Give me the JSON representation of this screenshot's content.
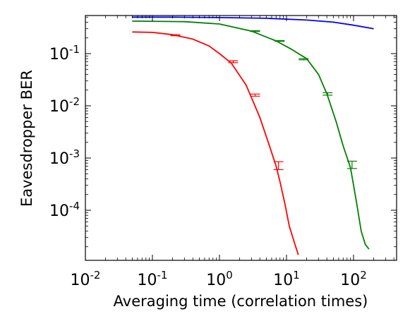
{
  "chart_data": {
    "type": "line",
    "title": "",
    "xlabel": "Averaging time (correlation times)",
    "ylabel": "Eavesdropper BER",
    "xscale": "log",
    "yscale": "log",
    "xlim": [
      0.01,
      300
    ],
    "ylim": [
      1e-05,
      0.5
    ],
    "x_ticks": [
      {
        "value": 0.01,
        "base": "10",
        "exp": "-2"
      },
      {
        "value": 0.1,
        "base": "10",
        "exp": "-1"
      },
      {
        "value": 1,
        "base": "10",
        "exp": "0"
      },
      {
        "value": 10,
        "base": "10",
        "exp": "1"
      },
      {
        "value": 100,
        "base": "10",
        "exp": "2"
      }
    ],
    "y_ticks": [
      {
        "value": 0.1,
        "base": "10",
        "exp": "-1"
      },
      {
        "value": 0.01,
        "base": "10",
        "exp": "-2"
      },
      {
        "value": 0.001,
        "base": "10",
        "exp": "-3"
      },
      {
        "value": 0.0001,
        "base": "10",
        "exp": "-4"
      }
    ],
    "grid": false,
    "legend": "none",
    "series": [
      {
        "color": "#0000ff",
        "x": [
          0.05,
          0.2,
          1,
          5,
          20,
          50,
          100,
          200
        ],
        "y": [
          0.5,
          0.5,
          0.49,
          0.475,
          0.44,
          0.4,
          0.35,
          0.3
        ],
        "error_bars": []
      },
      {
        "color": "#008000",
        "x": [
          0.05,
          0.3,
          1,
          3,
          7,
          12,
          20,
          30,
          40,
          55,
          70,
          90,
          110,
          130,
          150,
          170
        ],
        "y": [
          0.42,
          0.41,
          0.37,
          0.27,
          0.175,
          0.12,
          0.08,
          0.04,
          0.017,
          0.005,
          0.0017,
          0.00065,
          0.00015,
          4e-05,
          2.2e-05,
          1.8e-05
        ],
        "error_bars": [
          {
            "x": 3.4,
            "y": 0.27,
            "lo": 0.265,
            "hi": 0.275
          },
          {
            "x": 7.9,
            "y": 0.175,
            "lo": 0.172,
            "hi": 0.178
          },
          {
            "x": 18,
            "y": 0.078,
            "lo": 0.076,
            "hi": 0.08
          },
          {
            "x": 41,
            "y": 0.017,
            "lo": 0.016,
            "hi": 0.0178
          },
          {
            "x": 95,
            "y": 0.00075,
            "lo": 0.00063,
            "hi": 0.00087
          }
        ]
      },
      {
        "color": "#ff0000",
        "x": [
          0.05,
          0.1,
          0.2,
          0.4,
          0.7,
          1,
          1.5,
          2.5,
          4,
          5.5,
          7,
          8,
          9.5,
          11,
          13,
          15
        ],
        "y": [
          0.26,
          0.255,
          0.23,
          0.19,
          0.14,
          0.1,
          0.066,
          0.025,
          0.006,
          0.0018,
          0.0007,
          0.00035,
          0.00013,
          5e-05,
          2.5e-05,
          1.4e-05
        ],
        "error_bars": [
          {
            "x": 0.22,
            "y": 0.225,
            "lo": 0.22,
            "hi": 0.23
          },
          {
            "x": 1.6,
            "y": 0.07,
            "lo": 0.067,
            "hi": 0.073
          },
          {
            "x": 3.4,
            "y": 0.016,
            "lo": 0.0153,
            "hi": 0.0168
          },
          {
            "x": 7.6,
            "y": 0.00072,
            "lo": 0.0006,
            "hi": 0.00085
          }
        ]
      }
    ]
  }
}
